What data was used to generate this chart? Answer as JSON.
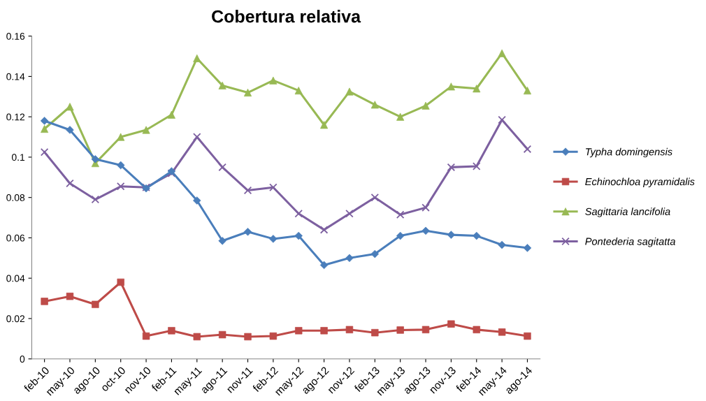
{
  "chart_data": {
    "type": "line",
    "title": "Cobertura relativa",
    "categories": [
      "feb-10",
      "may-10",
      "ago-10",
      "oct-10",
      "nov-10",
      "feb-11",
      "may-11",
      "ago-11",
      "nov-11",
      "feb-12",
      "may-12",
      "ago-12",
      "nov-12",
      "feb-13",
      "may-13",
      "ago-13",
      "nov-13",
      "feb-14",
      "may-14",
      "ago-14"
    ],
    "series": [
      {
        "name": "Typha domingensis",
        "color": "#4a7ebb",
        "marker": "diamond",
        "values": [
          0.118,
          0.1135,
          0.099,
          0.096,
          0.0845,
          0.093,
          0.0785,
          0.0585,
          0.063,
          0.0595,
          0.061,
          0.0465,
          0.05,
          0.052,
          0.061,
          0.0635,
          0.0615,
          0.061,
          0.0565,
          0.055
        ]
      },
      {
        "name": "Echinochloa pyramidalis",
        "color": "#be4b48",
        "marker": "square",
        "values": [
          0.0285,
          0.031,
          0.027,
          0.038,
          0.0113,
          0.014,
          0.011,
          0.012,
          0.011,
          0.0113,
          0.014,
          0.014,
          0.0145,
          0.013,
          0.0143,
          0.0145,
          0.0173,
          0.0145,
          0.0133,
          0.0113
        ]
      },
      {
        "name": "Sagittaria lancifolia",
        "color": "#98b954",
        "marker": "triangle",
        "values": [
          0.114,
          0.125,
          0.097,
          0.11,
          0.1135,
          0.121,
          0.149,
          0.1355,
          0.132,
          0.138,
          0.133,
          0.116,
          0.1325,
          0.126,
          0.12,
          0.1255,
          0.135,
          0.134,
          0.1515,
          0.133
        ]
      },
      {
        "name": "Pontederia sagitatta",
        "color": "#7d60a0",
        "marker": "cross",
        "values": [
          0.1025,
          0.087,
          0.079,
          0.0855,
          0.085,
          0.092,
          0.11,
          0.095,
          0.0835,
          0.085,
          0.072,
          0.064,
          0.072,
          0.08,
          0.0715,
          0.075,
          0.095,
          0.0955,
          0.1185,
          0.104
        ]
      }
    ],
    "ylim": [
      0,
      0.16
    ],
    "yticks": [
      0,
      0.02,
      0.04,
      0.06,
      0.08,
      0.1,
      0.12,
      0.14,
      0.16
    ],
    "grid": false,
    "legend": "right",
    "line_style": "solid"
  }
}
